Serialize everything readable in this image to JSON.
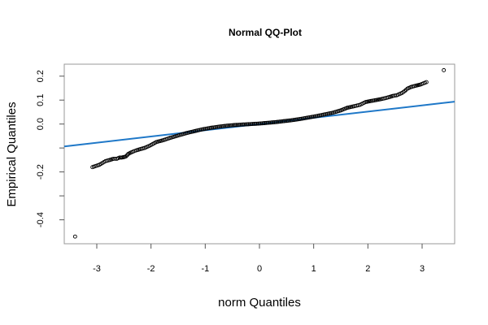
{
  "chart_data": {
    "type": "scatter",
    "title": "Normal QQ-Plot",
    "xlabel": "norm Quantiles",
    "ylabel": "Empirical Quantiles",
    "xlim": [
      -3.6,
      3.6
    ],
    "ylim": [
      -0.5,
      0.25
    ],
    "x_ticks": [
      -3,
      -2,
      -1,
      0,
      1,
      2,
      3
    ],
    "y_ticks": [
      -0.4,
      -0.3,
      -0.2,
      -0.1,
      0.0,
      0.1,
      0.2
    ],
    "y_tick_labels": [
      "-0.4",
      "",
      "-0.2",
      "",
      "0.0",
      "0.1",
      "0.2"
    ],
    "reference_line": {
      "intercept": 0.0,
      "slope": 0.026,
      "color": "#1f78c8"
    },
    "point_color": "#000000",
    "points": {
      "x": [
        -3.4,
        -3.08,
        -2.95,
        -2.84,
        -2.76,
        -2.69,
        -2.63,
        -2.58,
        -2.54,
        -2.5,
        -2.46,
        -2.42,
        -2.38,
        -2.33,
        -2.27,
        -2.2,
        -2.12,
        -2.02,
        -1.9,
        -1.78,
        -1.65,
        -1.5,
        -1.35,
        -1.2,
        -1.05,
        -0.9,
        -0.75,
        -0.6,
        -0.45,
        -0.3,
        -0.15,
        0.0,
        0.15,
        0.3,
        0.45,
        0.6,
        0.75,
        0.9,
        1.05,
        1.2,
        1.35,
        1.5,
        1.62,
        1.74,
        1.85,
        1.96,
        2.05,
        2.15,
        2.24,
        2.32,
        2.4,
        2.47,
        2.53,
        2.58,
        2.63,
        2.68,
        2.73,
        2.8,
        2.88,
        2.97,
        3.08,
        3.4
      ],
      "y": [
        -0.47,
        -0.18,
        -0.17,
        -0.155,
        -0.15,
        -0.145,
        -0.145,
        -0.14,
        -0.14,
        -0.138,
        -0.135,
        -0.125,
        -0.12,
        -0.115,
        -0.11,
        -0.105,
        -0.1,
        -0.09,
        -0.075,
        -0.068,
        -0.058,
        -0.048,
        -0.038,
        -0.03,
        -0.022,
        -0.016,
        -0.011,
        -0.007,
        -0.004,
        -0.002,
        0.0,
        0.002,
        0.005,
        0.008,
        0.012,
        0.016,
        0.021,
        0.027,
        0.033,
        0.04,
        0.047,
        0.057,
        0.068,
        0.074,
        0.08,
        0.092,
        0.096,
        0.1,
        0.104,
        0.108,
        0.113,
        0.118,
        0.12,
        0.125,
        0.13,
        0.138,
        0.148,
        0.155,
        0.16,
        0.165,
        0.175,
        0.225
      ]
    }
  }
}
